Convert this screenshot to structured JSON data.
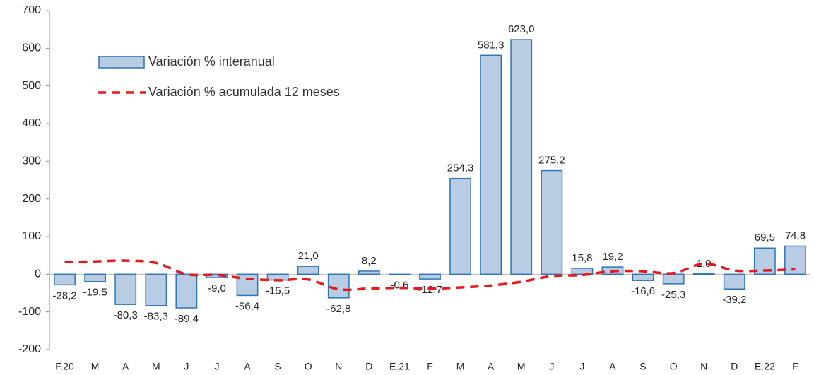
{
  "chart_data": {
    "type": "bar",
    "categories": [
      "F.20",
      "M",
      "A",
      "M",
      "J",
      "J",
      "A",
      "S",
      "O",
      "N",
      "D",
      "E.21",
      "F",
      "M",
      "A",
      "M",
      "J",
      "J",
      "A",
      "S",
      "O",
      "N",
      "D",
      "E.22",
      "F"
    ],
    "series": [
      {
        "name": "Variación % interanual",
        "type": "bar",
        "color": "#b8cce4",
        "stroke": "#2e75b6",
        "values": [
          -28.2,
          -19.5,
          -80.3,
          -83.3,
          -89.4,
          -9.0,
          -56.4,
          -15.5,
          21.0,
          -62.8,
          8.2,
          -0.6,
          -12.7,
          254.3,
          581.3,
          623.0,
          275.2,
          15.8,
          19.2,
          -16.6,
          -25.3,
          1.0,
          -39.2,
          69.5,
          74.8
        ],
        "value_labels": [
          "-28,2",
          "-19,5",
          "-80,3",
          "-83,3",
          "-89,4",
          "-9,0",
          "-56,4",
          "-15,5",
          "21,0",
          "-62,8",
          "8,2",
          "-0,6",
          "-12,7",
          "254,3",
          "581,3",
          "623,0",
          "275,2",
          "15,8",
          "19,2",
          "-16,6",
          "-25,3",
          "1,0",
          "-39,2",
          "69,5",
          "74,8"
        ]
      },
      {
        "name": "Variación % acumulada 12 meses",
        "type": "line",
        "color": "#e31a1c",
        "values": [
          32,
          34,
          36,
          30,
          0,
          -2,
          -12,
          -16,
          -14,
          -40,
          -38,
          -36,
          -38,
          -35,
          -30,
          -20,
          -5,
          -2,
          8,
          8,
          3,
          28,
          10,
          10,
          13
        ]
      }
    ],
    "ylim": [
      -200,
      700
    ],
    "yticks": [
      -200,
      -100,
      0,
      100,
      200,
      300,
      400,
      500,
      600,
      700
    ]
  }
}
